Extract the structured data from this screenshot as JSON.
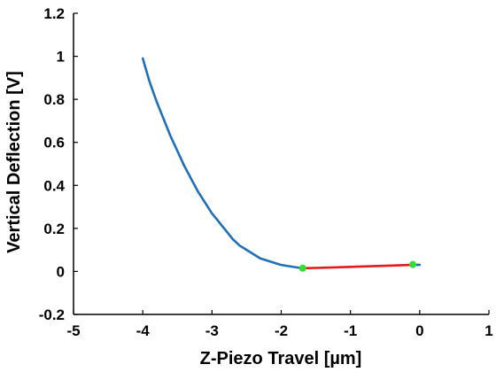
{
  "chart_data": {
    "type": "line",
    "xlabel": "Z-Piezo Travel [µm]",
    "ylabel": "Vertical Deflection [V]",
    "xlim": [
      -5,
      1
    ],
    "ylim": [
      -0.2,
      1.2
    ],
    "x_ticks": [
      "-5",
      "-4",
      "-3",
      "-2",
      "-1",
      "0",
      "1"
    ],
    "y_ticks": [
      "-0.2",
      "0",
      "0.2",
      "0.4",
      "0.6",
      "0.8",
      "1",
      "1.2"
    ],
    "x_tick_values": [
      -5,
      -4,
      -3,
      -2,
      -1,
      0,
      1
    ],
    "y_tick_values": [
      -0.2,
      0,
      0.2,
      0.4,
      0.6,
      0.8,
      1,
      1.2
    ],
    "grid": false,
    "series": [
      {
        "color": "#1f6fba",
        "x": [
          -4.0,
          -3.9,
          -3.8,
          -3.7,
          -3.6,
          -3.5,
          -3.4,
          -3.3,
          -3.2,
          -3.1,
          -3.0,
          -2.9,
          -2.8,
          -2.7,
          -2.6,
          -2.5,
          -2.4,
          -2.3,
          -2.2,
          -2.1,
          -2.0,
          -1.9,
          -1.8,
          -1.7,
          -1.69
        ],
        "values": [
          0.99,
          0.88,
          0.79,
          0.71,
          0.63,
          0.56,
          0.49,
          0.43,
          0.37,
          0.32,
          0.27,
          0.23,
          0.19,
          0.15,
          0.12,
          0.1,
          0.08,
          0.06,
          0.05,
          0.04,
          0.03,
          0.025,
          0.02,
          0.015,
          0.015
        ]
      },
      {
        "color": "#e31a1c",
        "x": [
          -1.69,
          -1.5,
          -1.3,
          -1.1,
          -0.9,
          -0.7,
          -0.5,
          -0.3,
          -0.1
        ],
        "values": [
          0.015,
          0.016,
          0.018,
          0.02,
          0.022,
          0.024,
          0.026,
          0.028,
          0.03
        ]
      },
      {
        "color": "#1f6fba",
        "x": [
          -0.1,
          -0.05,
          0.0
        ],
        "values": [
          0.03,
          0.031,
          0.03
        ]
      }
    ],
    "markers": [
      {
        "x": -1.69,
        "y": 0.015,
        "color": "#33dd33"
      },
      {
        "x": -0.1,
        "y": 0.032,
        "color": "#33dd33"
      }
    ]
  }
}
